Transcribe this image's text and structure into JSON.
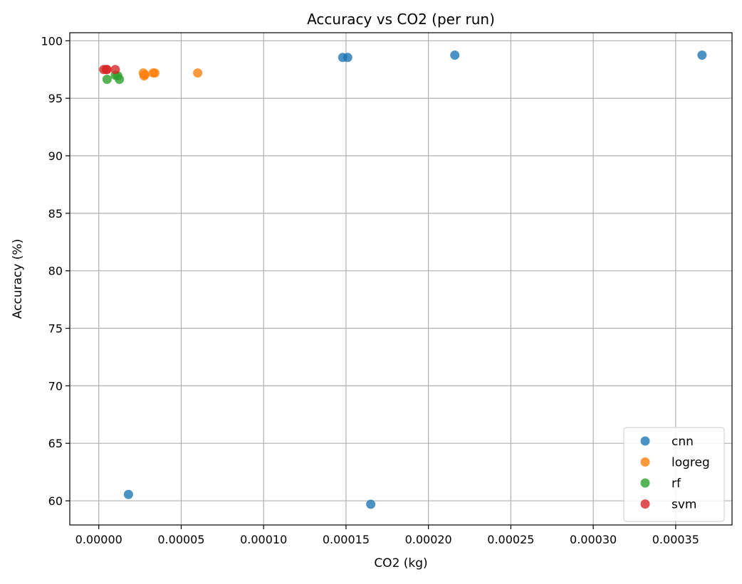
{
  "chart_data": {
    "type": "scatter",
    "title": "Accuracy vs CO2 (per run)",
    "xlabel": "CO2 (kg)",
    "ylabel": "Accuracy (%)",
    "xlim": [
      -1.76e-05,
      0.0003842
    ],
    "ylim": [
      57.9,
      100.7
    ],
    "x_ticks": [
      {
        "value": 0.0,
        "label": "0.00000"
      },
      {
        "value": 5e-05,
        "label": "0.00005"
      },
      {
        "value": 0.0001,
        "label": "0.00010"
      },
      {
        "value": 0.00015,
        "label": "0.00015"
      },
      {
        "value": 0.0002,
        "label": "0.00020"
      },
      {
        "value": 0.00025,
        "label": "0.00025"
      },
      {
        "value": 0.0003,
        "label": "0.00030"
      },
      {
        "value": 0.00035,
        "label": "0.00035"
      }
    ],
    "y_ticks": [
      {
        "value": 60,
        "label": "60"
      },
      {
        "value": 65,
        "label": "65"
      },
      {
        "value": 70,
        "label": "70"
      },
      {
        "value": 75,
        "label": "75"
      },
      {
        "value": 80,
        "label": "80"
      },
      {
        "value": 85,
        "label": "85"
      },
      {
        "value": 90,
        "label": "90"
      },
      {
        "value": 95,
        "label": "95"
      },
      {
        "value": 100,
        "label": "100"
      }
    ],
    "grid": true,
    "legend_position": "lower-right",
    "series": [
      {
        "name": "cnn",
        "color": "#1f77b4",
        "points": [
          {
            "x": 1.8e-05,
            "y": 60.55
          },
          {
            "x": 0.000148,
            "y": 98.55
          },
          {
            "x": 0.000151,
            "y": 98.55
          },
          {
            "x": 0.000165,
            "y": 59.7
          },
          {
            "x": 0.000216,
            "y": 98.75
          },
          {
            "x": 0.000366,
            "y": 98.75
          }
        ]
      },
      {
        "name": "logreg",
        "color": "#ff7f0e",
        "points": [
          {
            "x": 2.7e-05,
            "y": 97.2
          },
          {
            "x": 2.75e-05,
            "y": 96.95
          },
          {
            "x": 2.8e-05,
            "y": 97.05
          },
          {
            "x": 3.3e-05,
            "y": 97.2
          },
          {
            "x": 3.4e-05,
            "y": 97.2
          },
          {
            "x": 6e-05,
            "y": 97.2
          }
        ]
      },
      {
        "name": "rf",
        "color": "#2ca02c",
        "points": [
          {
            "x": 5e-06,
            "y": 96.65
          },
          {
            "x": 1e-05,
            "y": 97.0
          },
          {
            "x": 1.15e-05,
            "y": 96.95
          },
          {
            "x": 1.25e-05,
            "y": 96.65
          }
        ]
      },
      {
        "name": "svm",
        "color": "#d62728",
        "points": [
          {
            "x": 3e-06,
            "y": 97.5
          },
          {
            "x": 4.5e-06,
            "y": 97.5
          },
          {
            "x": 5e-06,
            "y": 97.5
          },
          {
            "x": 1e-05,
            "y": 97.5
          }
        ]
      }
    ]
  }
}
